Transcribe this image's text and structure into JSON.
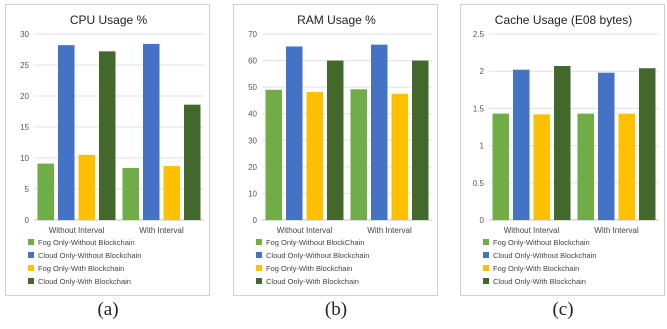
{
  "chart_data": [
    {
      "type": "bar",
      "title": "CPU Usage %",
      "categories": [
        "Without Interval",
        "With Interval"
      ],
      "ylim": [
        0,
        30
      ],
      "yticks": [
        "0",
        "5",
        "10",
        "15",
        "20",
        "25",
        "30"
      ],
      "ytick_values": [
        0,
        5,
        10,
        15,
        20,
        25,
        30
      ],
      "grid": true,
      "legend": "bottom",
      "series": [
        {
          "name": "Fog Only-Without Blockchain",
          "color": "#70ad47",
          "values": [
            9.1,
            8.4
          ]
        },
        {
          "name": "Cloud Only-Without Blockchain",
          "color": "#4472c4",
          "values": [
            28.2,
            28.4
          ]
        },
        {
          "name": "Fog Only-With Blockchain",
          "color": "#ffc000",
          "values": [
            10.5,
            8.7
          ]
        },
        {
          "name": "Cloud Only-With Blockchain",
          "color": "#43682b",
          "values": [
            27.2,
            18.6
          ]
        }
      ],
      "sublabel": "(a)"
    },
    {
      "type": "bar",
      "title": "RAM Usage %",
      "categories": [
        "Without Interval",
        "With Interval"
      ],
      "ylim": [
        0,
        70
      ],
      "yticks": [
        "0",
        "10",
        "20",
        "30",
        "40",
        "50",
        "60",
        "70"
      ],
      "ytick_values": [
        0,
        10,
        20,
        30,
        40,
        50,
        60,
        70
      ],
      "grid": true,
      "legend": "bottom",
      "series": [
        {
          "name": "Fog Only-Without BlockChain",
          "color": "#70ad47",
          "values": [
            49,
            49.2
          ]
        },
        {
          "name": "Cloud Only-Without Blockchain",
          "color": "#4472c4",
          "values": [
            65.3,
            66
          ]
        },
        {
          "name": "Fog Only-With Blockchain",
          "color": "#ffc000",
          "values": [
            48.2,
            47.5
          ]
        },
        {
          "name": "Cloud Only-With Blockchain",
          "color": "#43682b",
          "values": [
            60,
            60
          ]
        }
      ],
      "sublabel": "(b)"
    },
    {
      "type": "bar",
      "title": "Cache Usage (E08 bytes)",
      "categories": [
        "Without Interval",
        "With Interval"
      ],
      "ylim": [
        0,
        2.5
      ],
      "yticks": [
        "0",
        "0.5",
        "1",
        "1.5",
        "2",
        "2.5"
      ],
      "ytick_values": [
        0,
        0.5,
        1,
        1.5,
        2,
        2.5
      ],
      "grid": true,
      "legend": "bottom",
      "series": [
        {
          "name": "Fog Only-Without Blockchain",
          "color": "#70ad47",
          "values": [
            1.43,
            1.43
          ]
        },
        {
          "name": "Cloud Only-Without Blockchain",
          "color": "#4472c4",
          "values": [
            2.02,
            1.98
          ]
        },
        {
          "name": "Fog Only-With Blockchain",
          "color": "#ffc000",
          "values": [
            1.42,
            1.43
          ]
        },
        {
          "name": "Cloud Only-With Blockchain",
          "color": "#43682b",
          "values": [
            2.07,
            2.04
          ]
        }
      ],
      "sublabel": "(c)"
    }
  ]
}
